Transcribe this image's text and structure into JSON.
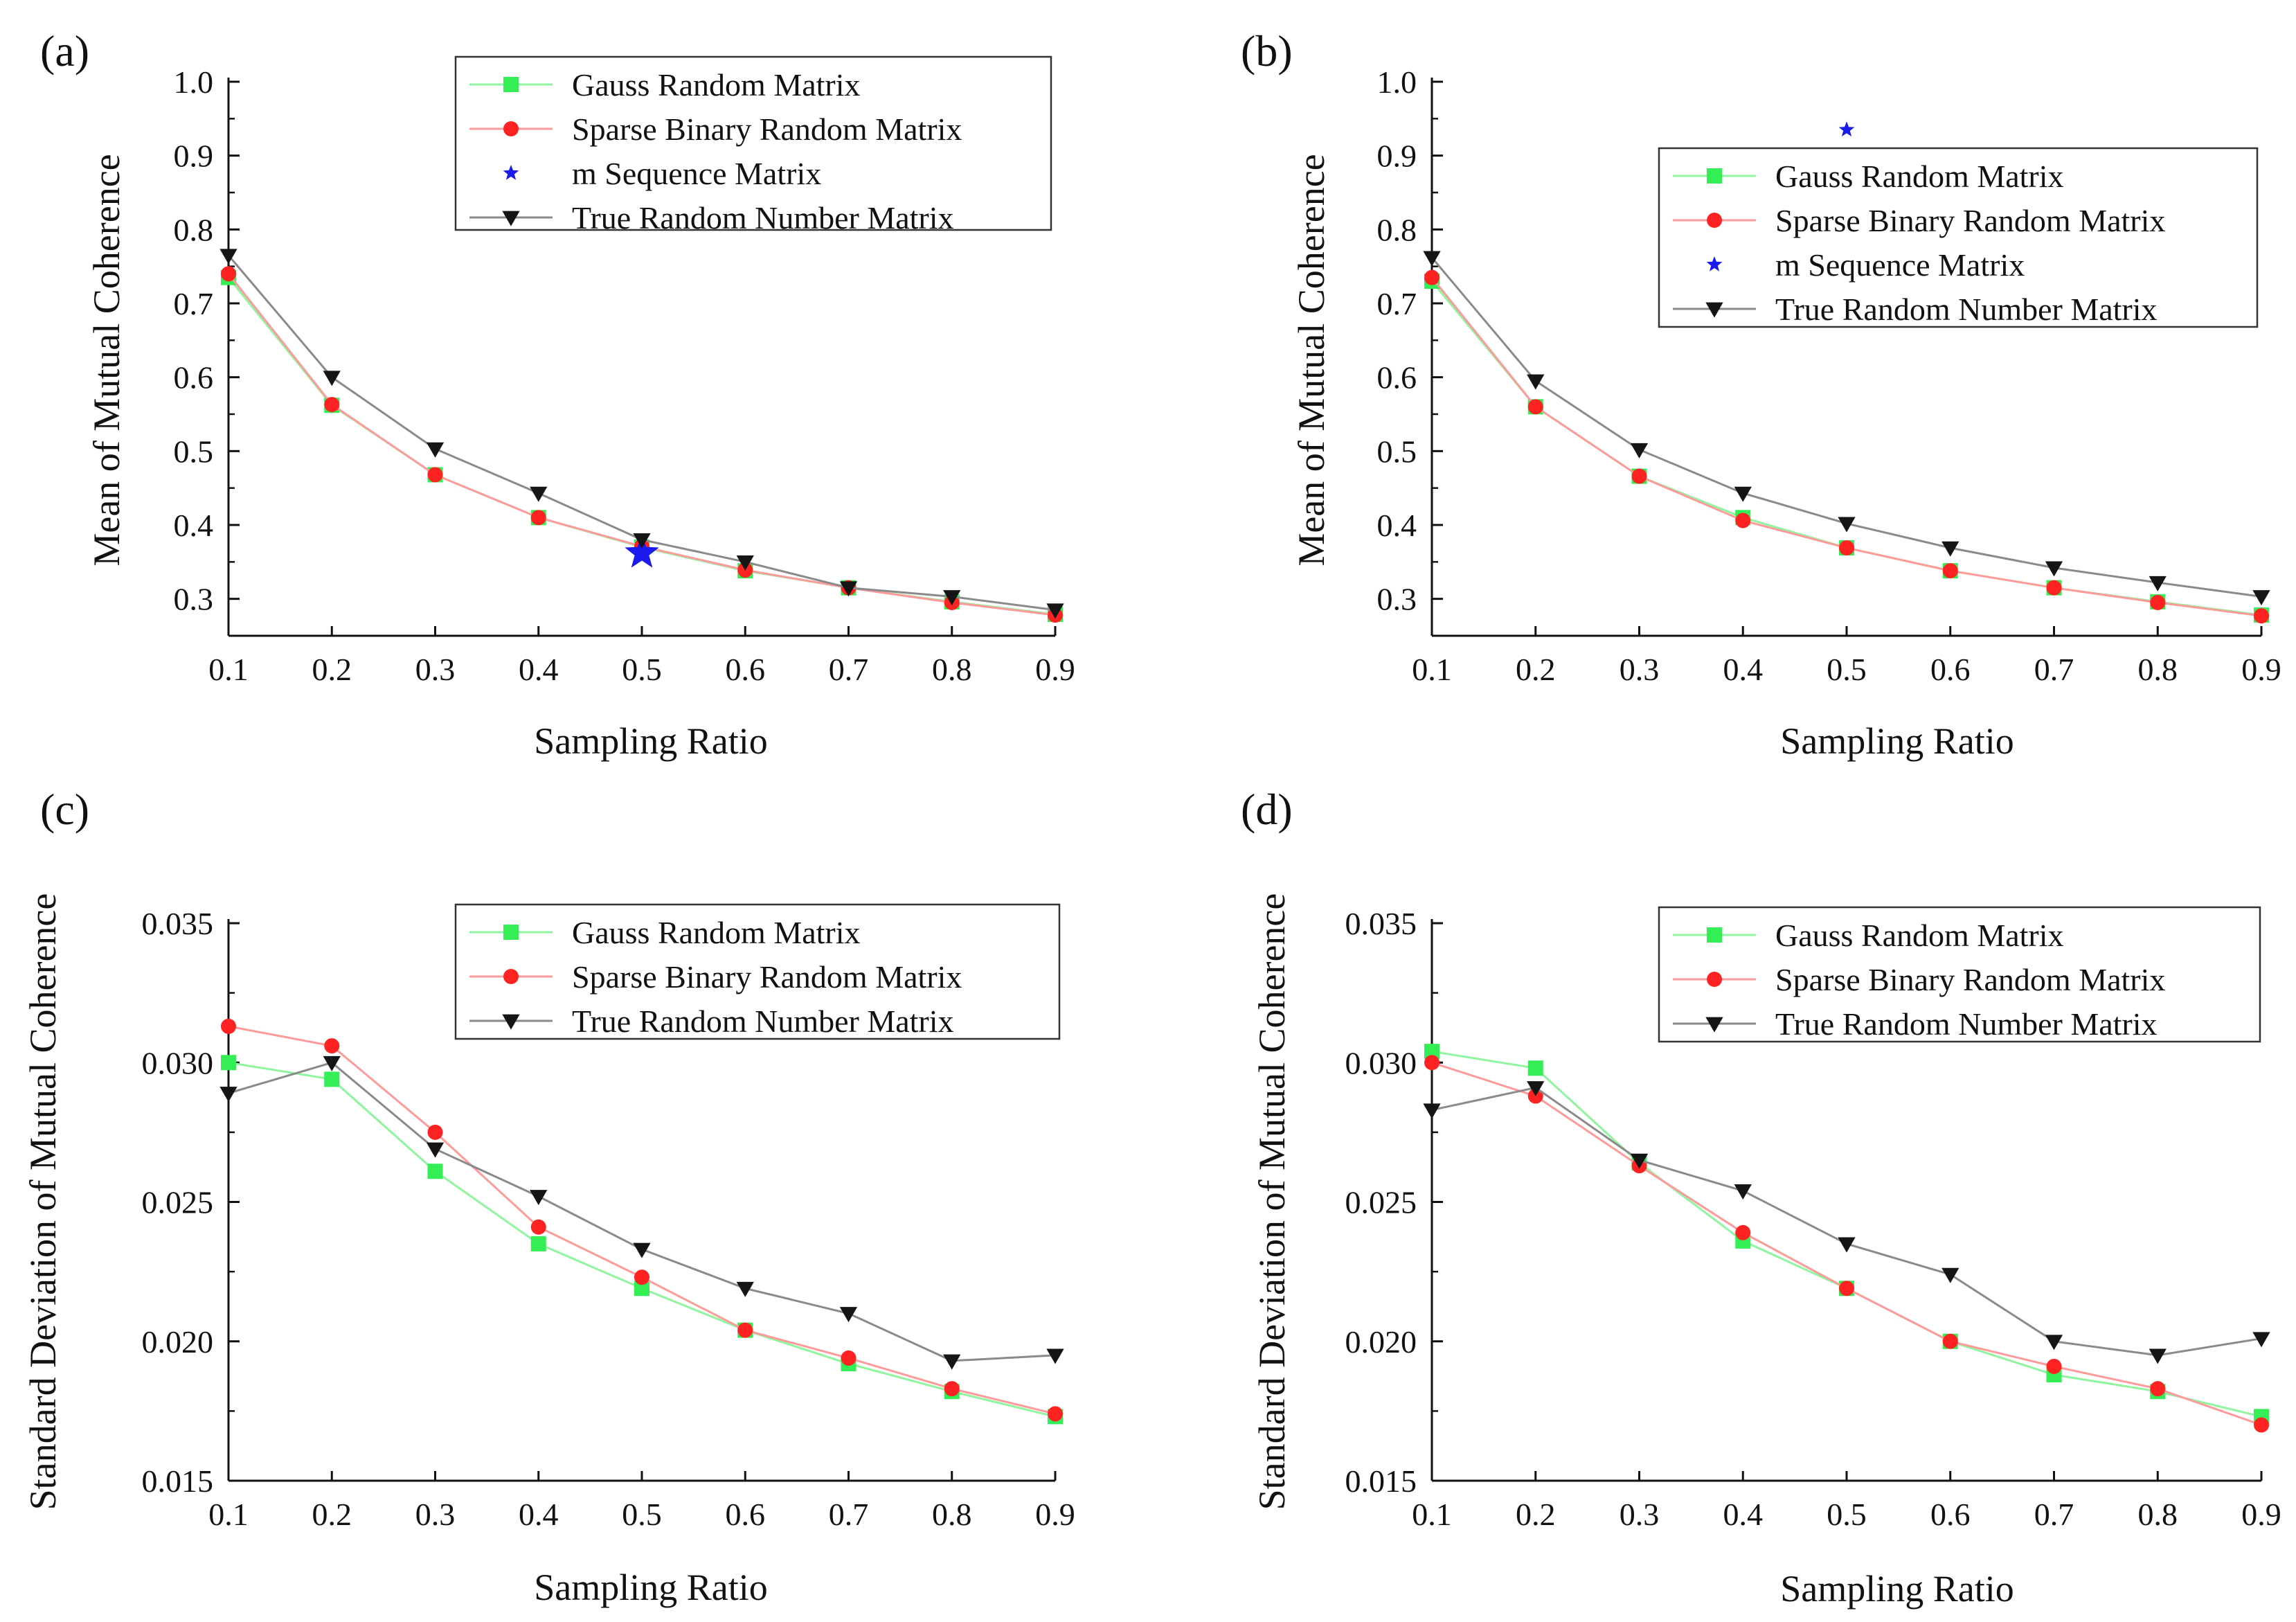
{
  "figure_colors": {
    "Gauss Random Matrix": "#33ee55",
    "Sparse Binary Random Matrix": "#ff2222",
    "m Sequence Matrix": "#1a1aee",
    "True Random Number Matrix": "#151515",
    "gauss_line": "#8ff59f",
    "sparse_line": "#ff9a9a",
    "true_line": "#8a8a8a"
  },
  "chart_data": [
    {
      "panel": "(a)",
      "type": "line",
      "xlabel": "Sampling Ratio",
      "ylabel": "Mean of Mutual Coherence",
      "xlim": [
        0.1,
        0.9
      ],
      "ylim": [
        0.25,
        1.0
      ],
      "x_ticks": [
        "0.1",
        "0.2",
        "0.3",
        "0.4",
        "0.5",
        "0.6",
        "0.7",
        "0.8",
        "0.9"
      ],
      "y_ticks": [
        "0.3",
        "0.4",
        "0.5",
        "0.6",
        "0.7",
        "0.8",
        "0.9",
        "1.0"
      ],
      "legend": [
        "Gauss Random Matrix",
        "Sparse Binary Random Matrix",
        "m Sequence Matrix",
        "True Random Number Matrix"
      ],
      "x": [
        0.1,
        0.2,
        0.3,
        0.4,
        0.5,
        0.6,
        0.7,
        0.8,
        0.9
      ],
      "series": [
        {
          "name": "Gauss Random Matrix",
          "values": [
            0.735,
            0.562,
            0.468,
            0.41,
            0.37,
            0.338,
            0.315,
            0.296,
            0.279
          ]
        },
        {
          "name": "Sparse Binary Random Matrix",
          "values": [
            0.74,
            0.563,
            0.468,
            0.41,
            0.371,
            0.339,
            0.315,
            0.295,
            0.278
          ]
        },
        {
          "name": "m Sequence Matrix",
          "x": [
            0.5
          ],
          "values": [
            0.362
          ]
        },
        {
          "name": "True Random Number Matrix",
          "values": [
            0.765,
            0.6,
            0.503,
            0.443,
            0.38,
            0.35,
            0.315,
            0.303,
            0.285
          ]
        }
      ]
    },
    {
      "panel": "(b)",
      "type": "line",
      "xlabel": "Sampling Ratio",
      "ylabel": "Mean of Mutual Coherence",
      "xlim": [
        0.1,
        0.9
      ],
      "ylim": [
        0.25,
        1.0
      ],
      "x_ticks": [
        "0.1",
        "0.2",
        "0.3",
        "0.4",
        "0.5",
        "0.6",
        "0.7",
        "0.8",
        "0.9"
      ],
      "y_ticks": [
        "0.3",
        "0.4",
        "0.5",
        "0.6",
        "0.7",
        "0.8",
        "0.9",
        "1.0"
      ],
      "legend": [
        "Gauss Random Matrix",
        "Sparse Binary Random Matrix",
        "m Sequence Matrix",
        "True Random Number Matrix"
      ],
      "x": [
        0.1,
        0.2,
        0.3,
        0.4,
        0.5,
        0.6,
        0.7,
        0.8,
        0.9
      ],
      "series": [
        {
          "name": "Gauss Random Matrix",
          "values": [
            0.73,
            0.56,
            0.466,
            0.41,
            0.369,
            0.338,
            0.315,
            0.296,
            0.278
          ]
        },
        {
          "name": "Sparse Binary Random Matrix",
          "values": [
            0.735,
            0.56,
            0.466,
            0.406,
            0.369,
            0.338,
            0.315,
            0.295,
            0.277
          ]
        },
        {
          "name": "m Sequence Matrix",
          "x": [
            0.5
          ],
          "values": [
            0.935
          ]
        },
        {
          "name": "True Random Number Matrix",
          "values": [
            0.762,
            0.595,
            0.502,
            0.443,
            0.402,
            0.369,
            0.342,
            0.322,
            0.303
          ]
        }
      ]
    },
    {
      "panel": "(c)",
      "type": "line",
      "xlabel": "Sampling Ratio",
      "ylabel": "Standard Deviation of Mutual Coherence",
      "xlim": [
        0.1,
        0.9
      ],
      "ylim": [
        0.015,
        0.035
      ],
      "x_ticks": [
        "0.1",
        "0.2",
        "0.3",
        "0.4",
        "0.5",
        "0.6",
        "0.7",
        "0.8",
        "0.9"
      ],
      "y_ticks": [
        "0.015",
        "0.020",
        "0.025",
        "0.030",
        "0.035"
      ],
      "legend": [
        "Gauss Random Matrix",
        "Sparse Binary Random Matrix",
        "True Random Number Matrix"
      ],
      "x": [
        0.1,
        0.2,
        0.3,
        0.4,
        0.5,
        0.6,
        0.7,
        0.8,
        0.9
      ],
      "series": [
        {
          "name": "Gauss Random Matrix",
          "values": [
            0.03,
            0.0294,
            0.0261,
            0.0235,
            0.0219,
            0.0204,
            0.0192,
            0.0182,
            0.0173
          ]
        },
        {
          "name": "Sparse Binary Random Matrix",
          "values": [
            0.0313,
            0.0306,
            0.0275,
            0.0241,
            0.0223,
            0.0204,
            0.0194,
            0.0183,
            0.0174
          ]
        },
        {
          "name": "True Random Number Matrix",
          "values": [
            0.0289,
            0.03,
            0.0269,
            0.0252,
            0.0233,
            0.0219,
            0.021,
            0.0193,
            0.0195
          ]
        }
      ]
    },
    {
      "panel": "(d)",
      "type": "line",
      "xlabel": "Sampling Ratio",
      "ylabel": "Standard Deviation of Mutual Coherence",
      "xlim": [
        0.1,
        0.9
      ],
      "ylim": [
        0.015,
        0.035
      ],
      "x_ticks": [
        "0.1",
        "0.2",
        "0.3",
        "0.4",
        "0.5",
        "0.6",
        "0.7",
        "0.8",
        "0.9"
      ],
      "y_ticks": [
        "0.015",
        "0.020",
        "0.025",
        "0.030",
        "0.035"
      ],
      "legend": [
        "Gauss Random Matrix",
        "Sparse Binary Random Matrix",
        "True Random Number Matrix"
      ],
      "x": [
        0.1,
        0.2,
        0.3,
        0.4,
        0.5,
        0.6,
        0.7,
        0.8,
        0.9
      ],
      "series": [
        {
          "name": "Gauss Random Matrix",
          "values": [
            0.0304,
            0.0298,
            0.0264,
            0.0236,
            0.0219,
            0.02,
            0.0188,
            0.0182,
            0.0173
          ]
        },
        {
          "name": "Sparse Binary Random Matrix",
          "values": [
            0.03,
            0.0288,
            0.0263,
            0.0239,
            0.0219,
            0.02,
            0.0191,
            0.0183,
            0.017
          ]
        },
        {
          "name": "True Random Number Matrix",
          "values": [
            0.0283,
            0.0291,
            0.0265,
            0.0254,
            0.0235,
            0.0224,
            0.02,
            0.0195,
            0.0201
          ]
        }
      ]
    }
  ]
}
